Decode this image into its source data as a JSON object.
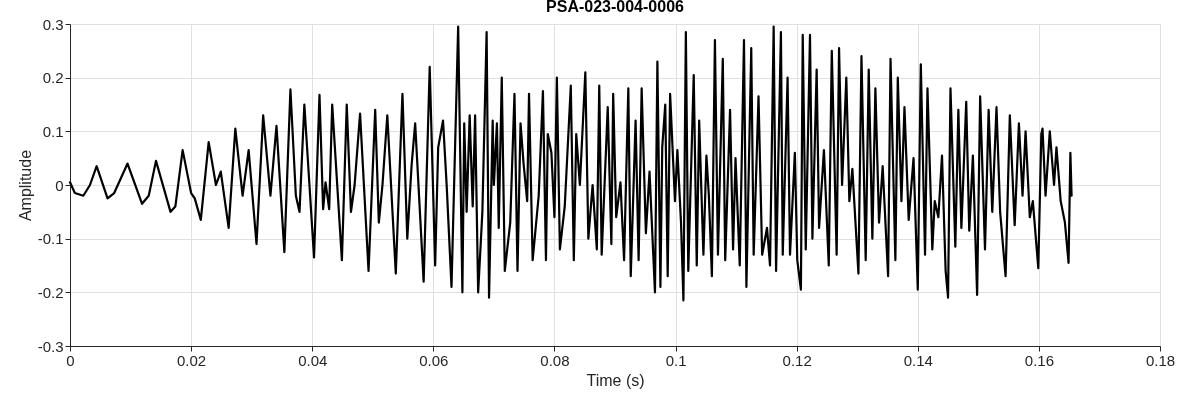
{
  "chart_data": {
    "type": "line",
    "title": "PSA-023-004-0006",
    "xlabel": "Time (s)",
    "ylabel": "Amplitude",
    "xlim": [
      0,
      0.18
    ],
    "xticks": [
      0,
      0.02,
      0.04,
      0.06,
      0.08,
      0.1,
      0.12,
      0.14,
      0.16,
      0.18
    ],
    "ylim": [
      -0.3,
      0.3
    ],
    "yticks": [
      -0.3,
      -0.2,
      -0.1,
      0,
      0.1,
      0.2,
      0.3
    ],
    "grid": true,
    "marker": "none",
    "line_style": "solid",
    "series": [
      {
        "color": "#000000",
        "x": [
          0,
          0.0008,
          0.0022,
          0.0033,
          0.0044,
          0.0062,
          0.0073,
          0.0095,
          0.0119,
          0.013,
          0.0142,
          0.0166,
          0.0174,
          0.0186,
          0.02,
          0.0206,
          0.0216,
          0.0229,
          0.0241,
          0.0249,
          0.0262,
          0.0273,
          0.0285,
          0.0295,
          0.0308,
          0.0319,
          0.0331,
          0.0341,
          0.0354,
          0.0364,
          0.0373,
          0.0379,
          0.0387,
          0.0403,
          0.0412,
          0.0418,
          0.0422,
          0.0428,
          0.0433,
          0.0449,
          0.0457,
          0.0464,
          0.047,
          0.0479,
          0.0493,
          0.0504,
          0.051,
          0.0516,
          0.0524,
          0.0538,
          0.0549,
          0.0557,
          0.0564,
          0.057,
          0.0584,
          0.0594,
          0.0603,
          0.0608,
          0.0616,
          0.0622,
          0.063,
          0.0641,
          0.0648,
          0.0651,
          0.0655,
          0.066,
          0.0665,
          0.0669,
          0.0674,
          0.0681,
          0.0688,
          0.0692,
          0.0698,
          0.07,
          0.0705,
          0.0708,
          0.0713,
          0.0718,
          0.0727,
          0.0734,
          0.0739,
          0.0744,
          0.0749,
          0.0755,
          0.0758,
          0.0764,
          0.0774,
          0.0781,
          0.0786,
          0.0789,
          0.0795,
          0.08,
          0.0804,
          0.0809,
          0.0817,
          0.0827,
          0.0832,
          0.0836,
          0.0842,
          0.0851,
          0.0856,
          0.0863,
          0.087,
          0.0874,
          0.0878,
          0.0888,
          0.0894,
          0.0897,
          0.0902,
          0.0909,
          0.0915,
          0.0922,
          0.0926,
          0.0934,
          0.0939,
          0.0944,
          0.0951,
          0.0957,
          0.0966,
          0.097,
          0.0975,
          0.0978,
          0.0983,
          0.0987,
          0.0991,
          0.0999,
          0.1003,
          0.1009,
          0.1013,
          0.1017,
          0.1021,
          0.103,
          0.1035,
          0.1039,
          0.1046,
          0.1051,
          0.1055,
          0.106,
          0.1065,
          0.107,
          0.1078,
          0.1082,
          0.109,
          0.1095,
          0.1099,
          0.1106,
          0.1113,
          0.1117,
          0.1125,
          0.1129,
          0.1137,
          0.1143,
          0.1151,
          0.1156,
          0.1162,
          0.1166,
          0.1174,
          0.1177,
          0.1185,
          0.1189,
          0.1197,
          0.1201,
          0.1207,
          0.121,
          0.1215,
          0.1222,
          0.1226,
          0.1233,
          0.1237,
          0.1245,
          0.1253,
          0.1258,
          0.1266,
          0.127,
          0.1275,
          0.1282,
          0.1287,
          0.1292,
          0.1302,
          0.1307,
          0.1314,
          0.1319,
          0.1325,
          0.133,
          0.1336,
          0.1342,
          0.1351,
          0.1355,
          0.1363,
          0.1367,
          0.1373,
          0.1378,
          0.1385,
          0.1393,
          0.14,
          0.1405,
          0.1412,
          0.1416,
          0.1424,
          0.1428,
          0.1434,
          0.144,
          0.1446,
          0.145,
          0.1454,
          0.1462,
          0.1467,
          0.1472,
          0.148,
          0.1485,
          0.1491,
          0.1498,
          0.1503,
          0.1511,
          0.1517,
          0.1523,
          0.153,
          0.1536,
          0.1545,
          0.1552,
          0.156,
          0.1567,
          0.1573,
          0.1578,
          0.1585,
          0.159,
          0.1599,
          0.1604,
          0.1606,
          0.1611,
          0.1618,
          0.1625,
          0.1629,
          0.1636,
          0.1643,
          0.1649,
          0.1652,
          0.1654
        ],
        "values": [
          0.005,
          -0.015,
          -0.02,
          0.0,
          0.035,
          -0.025,
          -0.015,
          0.04,
          -0.035,
          -0.02,
          0.045,
          -0.05,
          -0.04,
          0.065,
          -0.015,
          -0.025,
          -0.065,
          0.08,
          0.0,
          0.025,
          -0.08,
          0.105,
          -0.02,
          0.065,
          -0.11,
          0.13,
          -0.02,
          0.11,
          -0.125,
          0.178,
          -0.02,
          -0.05,
          0.15,
          -0.135,
          0.168,
          -0.045,
          0.005,
          -0.045,
          0.15,
          -0.14,
          0.15,
          -0.05,
          0.0,
          0.133,
          -0.16,
          0.14,
          -0.07,
          0.0,
          0.13,
          -0.165,
          0.17,
          -0.1,
          0.035,
          0.115,
          -0.18,
          0.22,
          -0.15,
          0.07,
          0.12,
          0.0,
          -0.19,
          0.295,
          -0.2,
          0.115,
          -0.05,
          0.13,
          -0.04,
          0.13,
          -0.2,
          -0.05,
          0.285,
          -0.21,
          0.12,
          0.0,
          0.115,
          -0.08,
          0.2,
          -0.16,
          -0.07,
          0.17,
          -0.16,
          0.115,
          0.04,
          -0.03,
          0.17,
          -0.14,
          -0.02,
          0.175,
          -0.14,
          0.095,
          0.06,
          -0.06,
          0.2,
          -0.12,
          -0.04,
          0.185,
          -0.14,
          0.095,
          0.0,
          0.21,
          -0.1,
          0.0,
          -0.12,
          0.185,
          -0.13,
          0.145,
          -0.11,
          0.17,
          -0.06,
          0.005,
          -0.14,
          0.18,
          -0.17,
          0.12,
          -0.14,
          0.18,
          -0.09,
          0.025,
          -0.2,
          0.23,
          -0.19,
          0.07,
          0.15,
          -0.17,
          0.17,
          -0.03,
          0.065,
          -0.07,
          -0.215,
          0.285,
          -0.16,
          0.205,
          -0.15,
          0.12,
          -0.13,
          0.055,
          -0.02,
          -0.17,
          0.27,
          -0.13,
          0.235,
          -0.14,
          0.14,
          -0.12,
          0.05,
          -0.15,
          0.27,
          -0.19,
          0.255,
          -0.13,
          0.165,
          -0.13,
          -0.08,
          -0.15,
          0.295,
          -0.16,
          0.285,
          -0.13,
          0.2,
          -0.13,
          0.06,
          -0.14,
          -0.195,
          0.28,
          -0.12,
          0.28,
          -0.1,
          0.215,
          -0.08,
          0.065,
          -0.15,
          0.25,
          -0.13,
          0.255,
          0.0,
          0.2,
          -0.03,
          0.03,
          -0.165,
          0.24,
          -0.14,
          0.215,
          -0.1,
          0.18,
          -0.07,
          0.035,
          -0.17,
          0.235,
          -0.14,
          0.2,
          -0.03,
          0.145,
          -0.065,
          0.05,
          -0.195,
          0.225,
          -0.13,
          0.18,
          -0.12,
          -0.03,
          -0.06,
          0.055,
          -0.16,
          -0.21,
          0.18,
          -0.115,
          0.14,
          -0.08,
          0.155,
          -0.085,
          0.055,
          -0.205,
          0.165,
          -0.12,
          0.14,
          -0.05,
          0.145,
          -0.05,
          -0.17,
          0.13,
          -0.075,
          0.115,
          -0.02,
          0.1,
          -0.06,
          -0.03,
          -0.155,
          0.095,
          0.105,
          -0.02,
          0.1,
          0.0,
          0.07,
          -0.03,
          -0.07,
          -0.145,
          0.06,
          -0.02
        ]
      }
    ]
  }
}
